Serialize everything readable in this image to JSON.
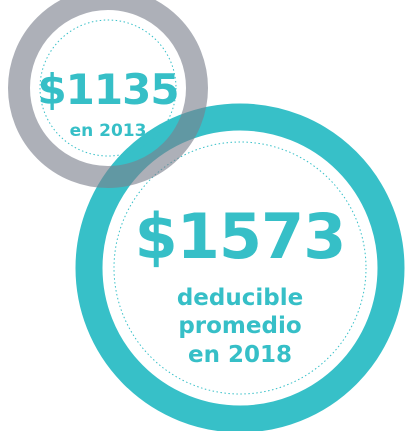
{
  "circles": [
    {
      "amount": "$1135",
      "caption": [
        "en 2013"
      ]
    },
    {
      "amount": "$1573",
      "caption": [
        "deducible",
        "promedio",
        "en 2018"
      ]
    }
  ]
}
